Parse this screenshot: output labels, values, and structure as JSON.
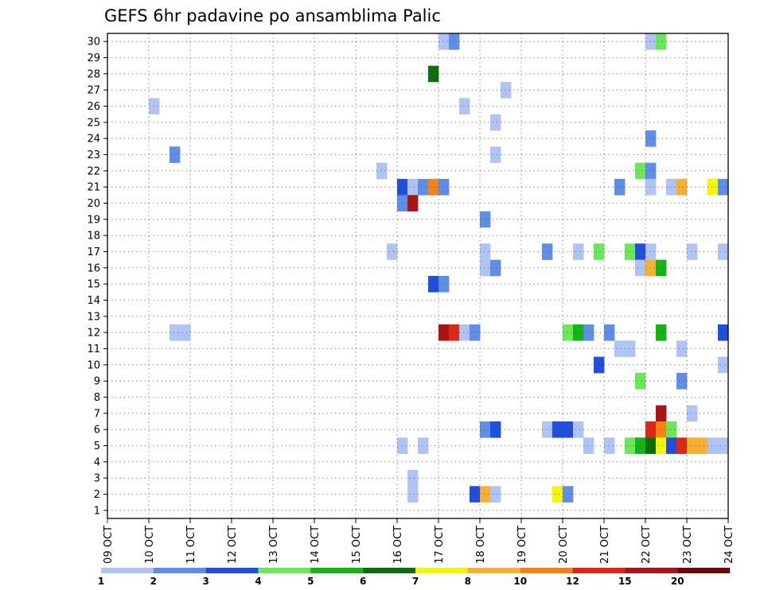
{
  "chart_data": {
    "type": "heatmap",
    "title": "GEFS 6hr padavine po ansamblima Palic",
    "xlabel": "",
    "ylabel": "",
    "x_tick_labels": [
      "09 OCT",
      "10 OCT",
      "11 OCT",
      "12 OCT",
      "13 OCT",
      "14 OCT",
      "15 OCT",
      "16 OCT",
      "17 OCT",
      "18 OCT",
      "19 OCT",
      "20 OCT",
      "21 OCT",
      "22 OCT",
      "23 OCT",
      "24 OCT"
    ],
    "y_tick_labels": [
      "1",
      "2",
      "3",
      "4",
      "5",
      "6",
      "7",
      "8",
      "9",
      "10",
      "11",
      "12",
      "13",
      "14",
      "15",
      "16",
      "17",
      "18",
      "19",
      "20",
      "21",
      "22",
      "23",
      "24",
      "25",
      "26",
      "27",
      "28",
      "29",
      "30"
    ],
    "x_range_days": [
      0,
      15
    ],
    "y_range": [
      0.5,
      30.5
    ],
    "step_hours": 6,
    "grid": true,
    "colorbar": {
      "placement": "bottom",
      "colors": [
        "#afc4f4",
        "#5f8ee8",
        "#1f4fdc",
        "#6ae85a",
        "#14b414",
        "#0a6e0a",
        "#f5f50a",
        "#f8b030",
        "#f58214",
        "#dc2814",
        "#aa1414",
        "#6e0505"
      ],
      "labels": [
        "1",
        "2",
        "3",
        "4",
        "5",
        "6",
        "7",
        "8",
        "10",
        "12",
        "15",
        "20"
      ]
    },
    "cells": [
      {
        "x": 8.0,
        "y": 30,
        "c": 1
      },
      {
        "x": 8.25,
        "y": 30,
        "c": 2
      },
      {
        "x": 13.0,
        "y": 30,
        "c": 1
      },
      {
        "x": 13.25,
        "y": 30,
        "c": 4
      },
      {
        "x": 7.75,
        "y": 28,
        "c": 6
      },
      {
        "x": 9.5,
        "y": 27,
        "c": 1
      },
      {
        "x": 1.0,
        "y": 26,
        "c": 1
      },
      {
        "x": 8.5,
        "y": 26,
        "c": 1
      },
      {
        "x": 9.25,
        "y": 25,
        "c": 1
      },
      {
        "x": 13.0,
        "y": 24,
        "c": 2
      },
      {
        "x": 1.5,
        "y": 23,
        "c": 2
      },
      {
        "x": 9.25,
        "y": 23,
        "c": 1
      },
      {
        "x": 6.5,
        "y": 22,
        "c": 1
      },
      {
        "x": 12.75,
        "y": 22,
        "c": 4
      },
      {
        "x": 13.0,
        "y": 22,
        "c": 2
      },
      {
        "x": 7.0,
        "y": 21,
        "c": 3
      },
      {
        "x": 7.25,
        "y": 21,
        "c": 1
      },
      {
        "x": 7.5,
        "y": 21,
        "c": 2
      },
      {
        "x": 7.75,
        "y": 21,
        "c": 9
      },
      {
        "x": 8.0,
        "y": 21,
        "c": 2
      },
      {
        "x": 12.25,
        "y": 21,
        "c": 2
      },
      {
        "x": 13.0,
        "y": 21,
        "c": 1
      },
      {
        "x": 13.5,
        "y": 21,
        "c": 1
      },
      {
        "x": 13.75,
        "y": 21,
        "c": 8
      },
      {
        "x": 14.5,
        "y": 21,
        "c": 7
      },
      {
        "x": 14.75,
        "y": 21,
        "c": 2
      },
      {
        "x": 7.0,
        "y": 20,
        "c": 2
      },
      {
        "x": 7.25,
        "y": 20,
        "c": 11
      },
      {
        "x": 9.0,
        "y": 19,
        "c": 2
      },
      {
        "x": 6.75,
        "y": 17,
        "c": 1
      },
      {
        "x": 9.0,
        "y": 17,
        "c": 1
      },
      {
        "x": 10.5,
        "y": 17,
        "c": 2
      },
      {
        "x": 11.25,
        "y": 17,
        "c": 1
      },
      {
        "x": 11.75,
        "y": 17,
        "c": 4
      },
      {
        "x": 12.5,
        "y": 17,
        "c": 4
      },
      {
        "x": 12.75,
        "y": 17,
        "c": 3
      },
      {
        "x": 13.0,
        "y": 17,
        "c": 1
      },
      {
        "x": 14.0,
        "y": 17,
        "c": 1
      },
      {
        "x": 14.75,
        "y": 17,
        "c": 1
      },
      {
        "x": 9.0,
        "y": 16,
        "c": 1
      },
      {
        "x": 9.25,
        "y": 16,
        "c": 2
      },
      {
        "x": 12.75,
        "y": 16,
        "c": 1
      },
      {
        "x": 13.0,
        "y": 16,
        "c": 8
      },
      {
        "x": 13.25,
        "y": 16,
        "c": 5
      },
      {
        "x": 7.75,
        "y": 15,
        "c": 3
      },
      {
        "x": 8.0,
        "y": 15,
        "c": 2
      },
      {
        "x": 1.5,
        "y": 12,
        "c": 1
      },
      {
        "x": 1.75,
        "y": 12,
        "c": 1
      },
      {
        "x": 8.0,
        "y": 12,
        "c": 11
      },
      {
        "x": 8.25,
        "y": 12,
        "c": 10
      },
      {
        "x": 8.5,
        "y": 12,
        "c": 1
      },
      {
        "x": 8.75,
        "y": 12,
        "c": 2
      },
      {
        "x": 11.0,
        "y": 12,
        "c": 4
      },
      {
        "x": 11.25,
        "y": 12,
        "c": 5
      },
      {
        "x": 11.5,
        "y": 12,
        "c": 2
      },
      {
        "x": 12.0,
        "y": 12,
        "c": 2
      },
      {
        "x": 13.25,
        "y": 12,
        "c": 5
      },
      {
        "x": 14.75,
        "y": 12,
        "c": 3
      },
      {
        "x": 12.25,
        "y": 11,
        "c": 1
      },
      {
        "x": 12.5,
        "y": 11,
        "c": 1
      },
      {
        "x": 13.75,
        "y": 11,
        "c": 1
      },
      {
        "x": 11.75,
        "y": 10,
        "c": 3
      },
      {
        "x": 14.75,
        "y": 10,
        "c": 1
      },
      {
        "x": 12.75,
        "y": 9,
        "c": 4
      },
      {
        "x": 13.75,
        "y": 9,
        "c": 2
      },
      {
        "x": 13.25,
        "y": 7,
        "c": 11
      },
      {
        "x": 14.0,
        "y": 7,
        "c": 1
      },
      {
        "x": 9.0,
        "y": 6,
        "c": 2
      },
      {
        "x": 9.25,
        "y": 6,
        "c": 3
      },
      {
        "x": 10.5,
        "y": 6,
        "c": 1
      },
      {
        "x": 10.75,
        "y": 6,
        "c": 3
      },
      {
        "x": 11.0,
        "y": 6,
        "c": 3
      },
      {
        "x": 11.25,
        "y": 6,
        "c": 1
      },
      {
        "x": 13.0,
        "y": 6,
        "c": 10
      },
      {
        "x": 13.25,
        "y": 6,
        "c": 9
      },
      {
        "x": 13.5,
        "y": 6,
        "c": 4
      },
      {
        "x": 7.0,
        "y": 5,
        "c": 1
      },
      {
        "x": 7.5,
        "y": 5,
        "c": 1
      },
      {
        "x": 11.5,
        "y": 5,
        "c": 1
      },
      {
        "x": 12.0,
        "y": 5,
        "c": 1
      },
      {
        "x": 12.5,
        "y": 5,
        "c": 4
      },
      {
        "x": 12.75,
        "y": 5,
        "c": 5
      },
      {
        "x": 13.0,
        "y": 5,
        "c": 6
      },
      {
        "x": 13.25,
        "y": 5,
        "c": 7
      },
      {
        "x": 13.5,
        "y": 5,
        "c": 3
      },
      {
        "x": 13.75,
        "y": 5,
        "c": 10
      },
      {
        "x": 14.0,
        "y": 5,
        "c": 8
      },
      {
        "x": 14.25,
        "y": 5,
        "c": 8
      },
      {
        "x": 14.5,
        "y": 5,
        "c": 1
      },
      {
        "x": 14.75,
        "y": 5,
        "c": 1
      },
      {
        "x": 7.25,
        "y": 3,
        "c": 1
      },
      {
        "x": 7.25,
        "y": 2,
        "c": 1
      },
      {
        "x": 8.75,
        "y": 2,
        "c": 3
      },
      {
        "x": 9.0,
        "y": 2,
        "c": 8
      },
      {
        "x": 9.25,
        "y": 2,
        "c": 1
      },
      {
        "x": 10.75,
        "y": 2,
        "c": 7
      },
      {
        "x": 11.0,
        "y": 2,
        "c": 2
      }
    ]
  }
}
